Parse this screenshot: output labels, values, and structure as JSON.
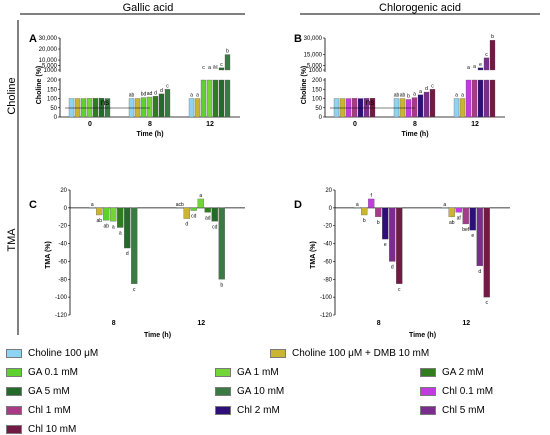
{
  "headers": {
    "left": "Gallic acid",
    "right": "Chlorogenic acid"
  },
  "row_labels": {
    "top": "Choline",
    "bottom": "TMA"
  },
  "chart_data": [
    {
      "panel": "A",
      "type": "bar",
      "ylabel": "Choline (%)",
      "xlabel": "Time (h)",
      "categories": [
        "0",
        "8",
        "12"
      ],
      "yticks_low": [
        "0",
        "50",
        "100",
        "150",
        "200"
      ],
      "yticks_high": [
        "1000",
        "5,000",
        "10,000",
        "20,000",
        "30,000"
      ],
      "ns_label": "ns",
      "series": [
        {
          "name": "Choline 100 μM",
          "color": "#8fd3f3",
          "values": [
            100,
            100,
            100
          ],
          "letters": [
            "",
            "ab",
            "a"
          ]
        },
        {
          "name": "Choline 100 μM + DMB 10 mM",
          "color": "#c9b531",
          "values": [
            100,
            100,
            100
          ],
          "letters": [
            "",
            "",
            "a"
          ]
        },
        {
          "name": "GA 0.1 mM",
          "color": "#5fd12e",
          "values": [
            100,
            105,
            220
          ],
          "letters": [
            "",
            "bd",
            "c"
          ]
        },
        {
          "name": "GA 1 mM",
          "color": "#72d637",
          "values": [
            101,
            108,
            230
          ],
          "letters": [
            "",
            "ad",
            "a"
          ]
        },
        {
          "name": "GA 2 mM",
          "color": "#2f7d1f",
          "values": [
            101,
            112,
            500
          ],
          "letters": [
            "",
            "d",
            "ac"
          ]
        },
        {
          "name": "GA 5 mM",
          "color": "#246a2a",
          "values": [
            102,
            125,
            3000
          ],
          "letters": [
            "",
            "d",
            "c"
          ]
        },
        {
          "name": "GA 10 mM",
          "color": "#3b7a44",
          "values": [
            100,
            150,
            15000
          ],
          "letters": [
            "",
            "c",
            "b"
          ]
        }
      ]
    },
    {
      "panel": "B",
      "type": "bar",
      "ylabel": "Choline (%)",
      "xlabel": "Time (h)",
      "categories": [
        "0",
        "8",
        "12"
      ],
      "yticks_low": [
        "0",
        "50",
        "100",
        "150",
        "200"
      ],
      "yticks_high": [
        "1000",
        "5,000",
        "15,000",
        "30,000"
      ],
      "ns_label": "ns",
      "series": [
        {
          "name": "Choline 100 μM",
          "color": "#8fd3f3",
          "values": [
            100,
            100,
            100
          ],
          "letters": [
            "",
            "ab",
            "a"
          ]
        },
        {
          "name": "Choline 100 μM + DMB 10 mM",
          "color": "#c9b531",
          "values": [
            100,
            100,
            100
          ],
          "letters": [
            "",
            "ab",
            "a"
          ]
        },
        {
          "name": "Chl 0.1 mM",
          "color": "#c23be0",
          "values": [
            100,
            95,
            220
          ],
          "letters": [
            "",
            "b",
            "a"
          ]
        },
        {
          "name": "Chl 1 mM",
          "color": "#a83a86",
          "values": [
            101,
            105,
            1000
          ],
          "letters": [
            "",
            "a",
            "a"
          ]
        },
        {
          "name": "Chl 2 mM",
          "color": "#2e0f7a",
          "values": [
            100,
            120,
            3000
          ],
          "letters": [
            "",
            "a",
            "e"
          ]
        },
        {
          "name": "Chl 5 mM",
          "color": "#7a2d8c",
          "values": [
            101,
            135,
            12000
          ],
          "letters": [
            "",
            "d",
            "c"
          ]
        },
        {
          "name": "Chl 10 mM",
          "color": "#701a44",
          "values": [
            102,
            150,
            28000
          ],
          "letters": [
            "",
            "c",
            "b"
          ]
        }
      ]
    },
    {
      "panel": "C",
      "type": "bar",
      "ylabel": "TMA (%)",
      "xlabel": "Time (h)",
      "categories": [
        "8",
        "12"
      ],
      "yticks": [
        "20",
        "0",
        "-20",
        "-40",
        "-60",
        "-80",
        "-100",
        "-120"
      ],
      "ylim": [
        -120,
        20
      ],
      "series": [
        {
          "name": "Choline 100 μM",
          "color": "#8fd3f3",
          "values": [
            0,
            0
          ],
          "letters": [
            "a",
            "acb"
          ]
        },
        {
          "name": "Choline 100 μM + DMB 10 mM",
          "color": "#c9b531",
          "values": [
            -8,
            -12
          ],
          "letters": [
            "ab",
            "d"
          ]
        },
        {
          "name": "GA 0.1 mM",
          "color": "#5fd12e",
          "values": [
            -14,
            -3
          ],
          "letters": [
            "ab",
            "cd"
          ]
        },
        {
          "name": "GA 1 mM",
          "color": "#72d637",
          "values": [
            -15,
            10
          ],
          "letters": [
            "a",
            "a"
          ]
        },
        {
          "name": "GA 2 mM",
          "color": "#2f7d1f",
          "values": [
            -22,
            -5
          ],
          "letters": [
            "a",
            "ad"
          ]
        },
        {
          "name": "GA 5 mM",
          "color": "#246a2a",
          "values": [
            -45,
            -15
          ],
          "letters": [
            "d",
            "cd"
          ]
        },
        {
          "name": "GA 10 mM",
          "color": "#3b7a44",
          "values": [
            -85,
            -80
          ],
          "letters": [
            "c",
            "b"
          ]
        }
      ]
    },
    {
      "panel": "D",
      "type": "bar",
      "ylabel": "TMA (%)",
      "xlabel": "Time (h)",
      "categories": [
        "8",
        "12"
      ],
      "yticks": [
        "20",
        "0",
        "-20",
        "-40",
        "-60",
        "-80",
        "-100",
        "-120"
      ],
      "ylim": [
        -120,
        20
      ],
      "series": [
        {
          "name": "Choline 100 μM",
          "color": "#8fd3f3",
          "values": [
            0,
            0
          ],
          "letters": [
            "a",
            "a"
          ]
        },
        {
          "name": "Choline 100 μM + DMB 10 mM",
          "color": "#c9b531",
          "values": [
            -8,
            -10
          ],
          "letters": [
            "b",
            "ab"
          ]
        },
        {
          "name": "Chl 0.1 mM",
          "color": "#c23be0",
          "values": [
            10,
            -5
          ],
          "letters": [
            "f",
            "af"
          ]
        },
        {
          "name": "Chl 1 mM",
          "color": "#a83a86",
          "values": [
            -10,
            -18
          ],
          "letters": [
            "b",
            "bef"
          ]
        },
        {
          "name": "Chl 2 mM",
          "color": "#2e0f7a",
          "values": [
            -35,
            -25
          ],
          "letters": [
            "e",
            "e"
          ]
        },
        {
          "name": "Chl 5 mM",
          "color": "#7a2d8c",
          "values": [
            -60,
            -65
          ],
          "letters": [
            "d",
            "d"
          ]
        },
        {
          "name": "Chl 10 mM",
          "color": "#701a44",
          "values": [
            -85,
            -100
          ],
          "letters": [
            "c",
            "c"
          ]
        }
      ]
    }
  ],
  "legend": [
    {
      "label": "Choline 100 μM",
      "color": "#8fd3f3"
    },
    {
      "label": "Choline 100 μM + DMB 10 mM",
      "color": "#c9b531"
    },
    {
      "label": "GA 0.1 mM",
      "color": "#5fd12e"
    },
    {
      "label": "GA 1 mM",
      "color": "#72d637"
    },
    {
      "label": "GA 2 mM",
      "color": "#2f7d1f"
    },
    {
      "label": "GA 5 mM",
      "color": "#246a2a"
    },
    {
      "label": "GA 10 mM",
      "color": "#3b7a44"
    },
    {
      "label": "Chl 0.1 mM",
      "color": "#c23be0"
    },
    {
      "label": "Chl 1 mM",
      "color": "#a83a86"
    },
    {
      "label": "Chl 2 mM",
      "color": "#2e0f7a"
    },
    {
      "label": "Chl 5 mM",
      "color": "#7a2d8c"
    },
    {
      "label": "Chl 10 mM",
      "color": "#701a44"
    }
  ]
}
